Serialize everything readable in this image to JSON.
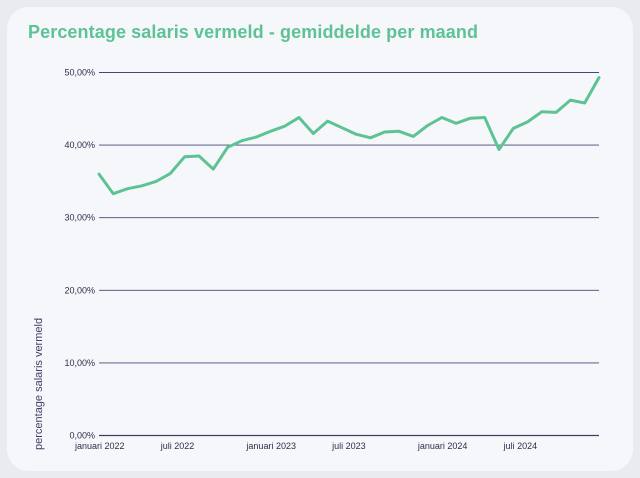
{
  "chart_data": {
    "type": "line",
    "title": "Percentage salaris vermeld - gemiddelde per maand",
    "ylabel": "percentage salaris vermeld",
    "xlabel": "",
    "ylim": [
      0,
      50
    ],
    "yticks": [
      "0,00%",
      "10,00%",
      "20,00%",
      "30,00%",
      "40,00%",
      "50,00%"
    ],
    "ytick_values": [
      0,
      10,
      20,
      30,
      40,
      50
    ],
    "xticks": [
      {
        "label": "januari 2022",
        "index": 0
      },
      {
        "label": "juli 2022",
        "index": 6
      },
      {
        "label": "januari 2023",
        "index": 12
      },
      {
        "label": "juli 2023",
        "index": 18
      },
      {
        "label": "januari 2024",
        "index": 24
      },
      {
        "label": "juli 2024",
        "index": 30
      }
    ],
    "grid": true,
    "series": [
      {
        "color": "#5ec394",
        "values": [
          36.0,
          33.3,
          34.0,
          34.4,
          35.0,
          36.1,
          38.4,
          38.5,
          36.7,
          39.7,
          40.6,
          41.1,
          41.9,
          42.6,
          43.8,
          41.6,
          43.3,
          42.4,
          41.5,
          41.0,
          41.8,
          41.9,
          41.2,
          42.7,
          43.8,
          43.0,
          43.7,
          43.8,
          39.4,
          42.3,
          43.2,
          44.6,
          44.5,
          46.2,
          45.8,
          49.3
        ]
      }
    ]
  }
}
